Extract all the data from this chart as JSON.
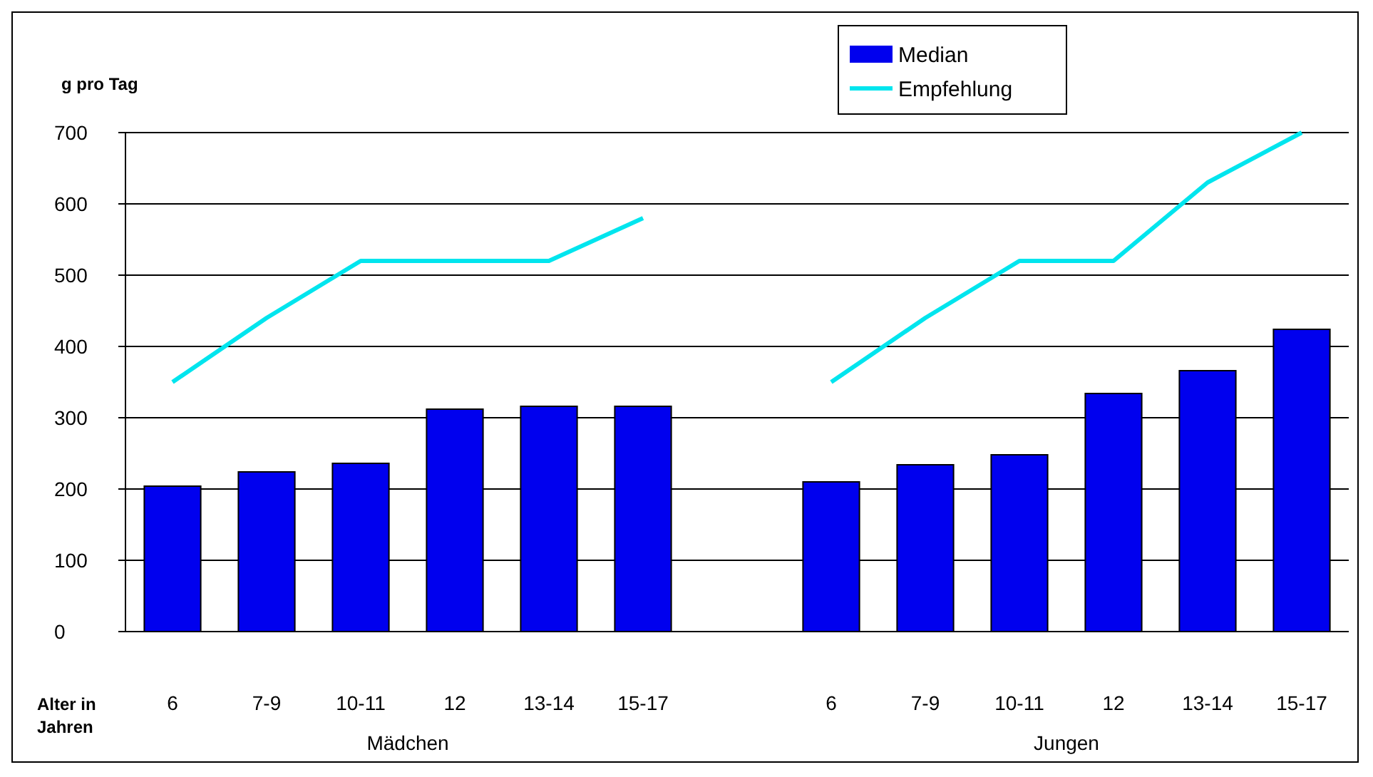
{
  "chart_data": {
    "type": "bar",
    "ylabel": "g pro Tag",
    "xlabel": "Alter in Jahren",
    "categories": [
      "6",
      "7-9",
      "10-11",
      "12",
      "13-14",
      "15-17",
      null,
      "6",
      "7-9",
      "10-11",
      "12",
      "13-14",
      "15-17"
    ],
    "series": [
      {
        "name": "Median",
        "color": "#0000ee",
        "values": [
          204,
          224,
          236,
          312,
          316,
          316,
          null,
          210,
          234,
          248,
          334,
          366,
          424
        ]
      },
      {
        "name": "Empfehlung",
        "type": "line",
        "color": "#00e5ee",
        "values": [
          350,
          440,
          520,
          520,
          520,
          580,
          null,
          350,
          440,
          520,
          520,
          630,
          700
        ]
      }
    ],
    "ylim": [
      0,
      700
    ],
    "yticks": [
      0,
      100,
      200,
      300,
      400,
      500,
      600,
      700
    ],
    "grid": "y",
    "legend": "top",
    "annotations": [
      "Mädchen",
      "Jungen"
    ]
  }
}
